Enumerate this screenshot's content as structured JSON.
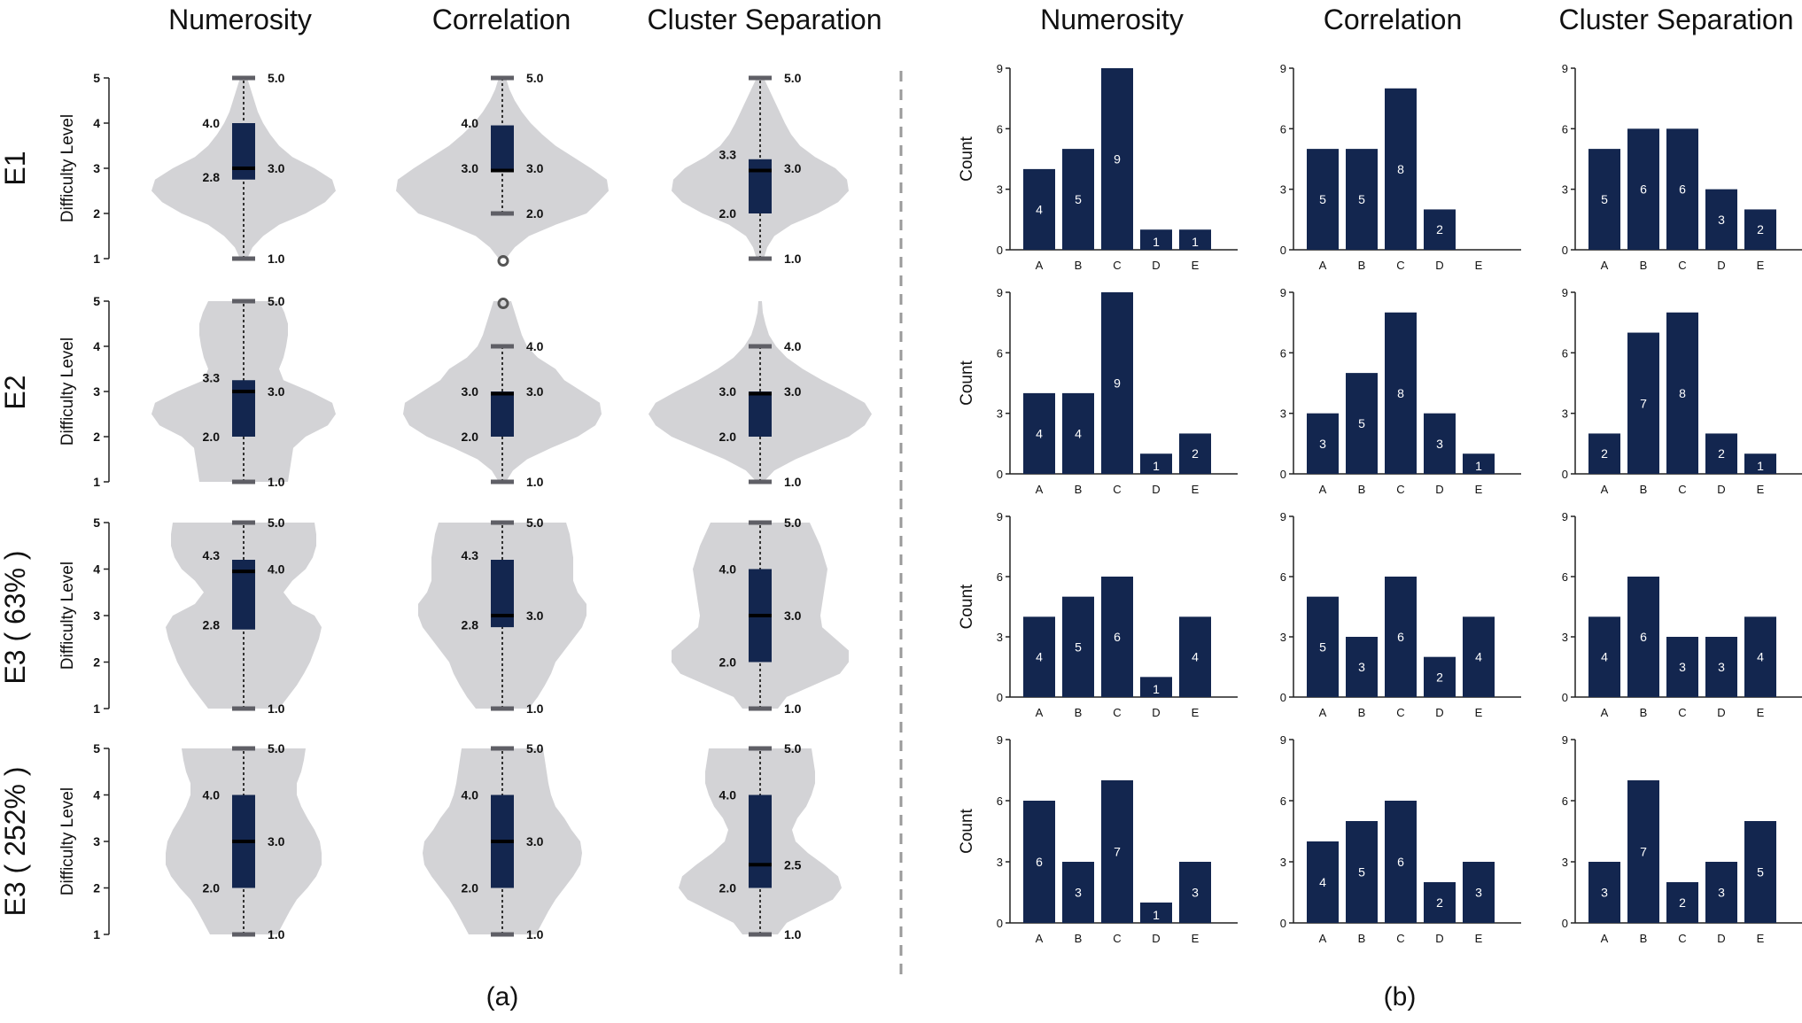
{
  "panels": {
    "a": {
      "caption": "(a)",
      "columns": [
        "Numerosity",
        "Correlation",
        "Cluster Separation"
      ],
      "rows": [
        "E1",
        "E2",
        "E3 ( 63% )",
        "E3 ( 252% )"
      ],
      "ylabel": "Difficulty Level"
    },
    "b": {
      "caption": "(b)",
      "columns": [
        "Numerosity",
        "Correlation",
        "Cluster Separation"
      ],
      "ylabel": "Count"
    }
  },
  "colors": {
    "violin": "#d3d3d6",
    "box": "#13264f",
    "bar": "#13264f",
    "whisker_cap": "#5f5f66",
    "divider": "#9a9a9a"
  },
  "chart_data": [
    {
      "type": "violin",
      "panel": "a",
      "ylim": [
        1,
        5
      ],
      "yticks": [
        1,
        2,
        3,
        4,
        5
      ],
      "cells": [
        [
          {
            "whisker_low": 1.0,
            "q1": 2.75,
            "median": 3.0,
            "q3": 4.0,
            "whisker_high": 5.0,
            "outliers": [],
            "labels": [
              {
                "text": "5.0",
                "v": 5.0,
                "side": "right"
              },
              {
                "text": "4.0",
                "v": 4.0,
                "side": "left"
              },
              {
                "text": "3.0",
                "v": 3.0,
                "side": "right"
              },
              {
                "text": "2.8",
                "v": 2.8,
                "side": "left"
              },
              {
                "text": "1.0",
                "v": 1.0,
                "side": "right"
              }
            ]
          },
          {
            "whisker_low": 2.0,
            "q1": 2.95,
            "median": 2.95,
            "q3": 3.95,
            "whisker_high": 5.0,
            "outliers": [
              0.95
            ],
            "labels": [
              {
                "text": "5.0",
                "v": 5.0,
                "side": "right"
              },
              {
                "text": "4.0",
                "v": 4.0,
                "side": "left"
              },
              {
                "text": "3.0",
                "v": 3.0,
                "side": "left"
              },
              {
                "text": "3.0",
                "v": 3.0,
                "side": "right"
              },
              {
                "text": "2.0",
                "v": 2.0,
                "side": "right"
              }
            ]
          },
          {
            "whisker_low": 1.0,
            "q1": 2.0,
            "median": 2.95,
            "q3": 3.2,
            "whisker_high": 5.0,
            "outliers": [],
            "labels": [
              {
                "text": "5.0",
                "v": 5.0,
                "side": "right"
              },
              {
                "text": "3.3",
                "v": 3.3,
                "side": "left"
              },
              {
                "text": "3.0",
                "v": 3.0,
                "side": "right"
              },
              {
                "text": "2.0",
                "v": 2.0,
                "side": "left"
              },
              {
                "text": "1.0",
                "v": 1.0,
                "side": "right"
              }
            ]
          }
        ],
        [
          {
            "whisker_low": 1.0,
            "q1": 2.0,
            "median": 3.0,
            "q3": 3.25,
            "whisker_high": 5.0,
            "outliers": [],
            "labels": [
              {
                "text": "5.0",
                "v": 5.0,
                "side": "right"
              },
              {
                "text": "3.3",
                "v": 3.3,
                "side": "left"
              },
              {
                "text": "3.0",
                "v": 3.0,
                "side": "right"
              },
              {
                "text": "2.0",
                "v": 2.0,
                "side": "left"
              },
              {
                "text": "1.0",
                "v": 1.0,
                "side": "right"
              }
            ]
          },
          {
            "whisker_low": 1.0,
            "q1": 2.0,
            "median": 2.95,
            "q3": 3.0,
            "whisker_high": 4.0,
            "outliers": [
              4.95
            ],
            "labels": [
              {
                "text": "4.0",
                "v": 4.0,
                "side": "right"
              },
              {
                "text": "3.0",
                "v": 3.0,
                "side": "left"
              },
              {
                "text": "3.0",
                "v": 3.0,
                "side": "right"
              },
              {
                "text": "2.0",
                "v": 2.0,
                "side": "left"
              },
              {
                "text": "1.0",
                "v": 1.0,
                "side": "right"
              }
            ]
          },
          {
            "whisker_low": 1.0,
            "q1": 2.0,
            "median": 2.95,
            "q3": 3.0,
            "whisker_high": 4.0,
            "outliers": [],
            "labels": [
              {
                "text": "4.0",
                "v": 4.0,
                "side": "right"
              },
              {
                "text": "3.0",
                "v": 3.0,
                "side": "left"
              },
              {
                "text": "3.0",
                "v": 3.0,
                "side": "right"
              },
              {
                "text": "2.0",
                "v": 2.0,
                "side": "left"
              },
              {
                "text": "1.0",
                "v": 1.0,
                "side": "right"
              }
            ]
          }
        ],
        [
          {
            "whisker_low": 1.0,
            "q1": 2.7,
            "median": 3.95,
            "q3": 4.2,
            "whisker_high": 5.0,
            "outliers": [],
            "labels": [
              {
                "text": "5.0",
                "v": 5.0,
                "side": "right"
              },
              {
                "text": "4.3",
                "v": 4.3,
                "side": "left"
              },
              {
                "text": "4.0",
                "v": 4.0,
                "side": "right"
              },
              {
                "text": "2.8",
                "v": 2.8,
                "side": "left"
              },
              {
                "text": "1.0",
                "v": 1.0,
                "side": "right"
              }
            ]
          },
          {
            "whisker_low": 1.0,
            "q1": 2.75,
            "median": 3.0,
            "q3": 4.2,
            "whisker_high": 5.0,
            "outliers": [],
            "labels": [
              {
                "text": "5.0",
                "v": 5.0,
                "side": "right"
              },
              {
                "text": "4.3",
                "v": 4.3,
                "side": "left"
              },
              {
                "text": "3.0",
                "v": 3.0,
                "side": "right"
              },
              {
                "text": "2.8",
                "v": 2.8,
                "side": "left"
              },
              {
                "text": "1.0",
                "v": 1.0,
                "side": "right"
              }
            ]
          },
          {
            "whisker_low": 1.0,
            "q1": 2.0,
            "median": 3.0,
            "q3": 4.0,
            "whisker_high": 5.0,
            "outliers": [],
            "labels": [
              {
                "text": "5.0",
                "v": 5.0,
                "side": "right"
              },
              {
                "text": "4.0",
                "v": 4.0,
                "side": "left"
              },
              {
                "text": "3.0",
                "v": 3.0,
                "side": "right"
              },
              {
                "text": "2.0",
                "v": 2.0,
                "side": "left"
              },
              {
                "text": "1.0",
                "v": 1.0,
                "side": "right"
              }
            ]
          }
        ],
        [
          {
            "whisker_low": 1.0,
            "q1": 2.0,
            "median": 3.0,
            "q3": 4.0,
            "whisker_high": 5.0,
            "outliers": [],
            "labels": [
              {
                "text": "5.0",
                "v": 5.0,
                "side": "right"
              },
              {
                "text": "4.0",
                "v": 4.0,
                "side": "left"
              },
              {
                "text": "3.0",
                "v": 3.0,
                "side": "right"
              },
              {
                "text": "2.0",
                "v": 2.0,
                "side": "left"
              },
              {
                "text": "1.0",
                "v": 1.0,
                "side": "right"
              }
            ]
          },
          {
            "whisker_low": 1.0,
            "q1": 2.0,
            "median": 3.0,
            "q3": 4.0,
            "whisker_high": 5.0,
            "outliers": [],
            "labels": [
              {
                "text": "5.0",
                "v": 5.0,
                "side": "right"
              },
              {
                "text": "4.0",
                "v": 4.0,
                "side": "left"
              },
              {
                "text": "3.0",
                "v": 3.0,
                "side": "right"
              },
              {
                "text": "2.0",
                "v": 2.0,
                "side": "left"
              },
              {
                "text": "1.0",
                "v": 1.0,
                "side": "right"
              }
            ]
          },
          {
            "whisker_low": 1.0,
            "q1": 2.0,
            "median": 2.5,
            "q3": 4.0,
            "whisker_high": 5.0,
            "outliers": [],
            "labels": [
              {
                "text": "5.0",
                "v": 5.0,
                "side": "right"
              },
              {
                "text": "4.0",
                "v": 4.0,
                "side": "left"
              },
              {
                "text": "2.5",
                "v": 2.5,
                "side": "right"
              },
              {
                "text": "2.0",
                "v": 2.0,
                "side": "left"
              },
              {
                "text": "1.0",
                "v": 1.0,
                "side": "right"
              }
            ]
          }
        ]
      ]
    },
    {
      "type": "bar",
      "panel": "b",
      "categories": [
        "A",
        "B",
        "C",
        "D",
        "E"
      ],
      "ylim": [
        0,
        9
      ],
      "yticks": [
        0,
        3,
        6,
        9
      ],
      "cells": [
        [
          [
            4,
            5,
            9,
            1,
            1
          ],
          [
            5,
            5,
            8,
            2,
            0
          ],
          [
            5,
            6,
            6,
            3,
            2
          ]
        ],
        [
          [
            4,
            4,
            9,
            1,
            2
          ],
          [
            3,
            5,
            8,
            3,
            1
          ],
          [
            2,
            7,
            8,
            2,
            1
          ]
        ],
        [
          [
            4,
            5,
            6,
            1,
            4
          ],
          [
            5,
            3,
            6,
            2,
            4
          ],
          [
            4,
            6,
            3,
            3,
            4
          ]
        ],
        [
          [
            6,
            3,
            7,
            1,
            3
          ],
          [
            4,
            5,
            6,
            2,
            3
          ],
          [
            3,
            7,
            2,
            3,
            5
          ]
        ]
      ]
    }
  ]
}
